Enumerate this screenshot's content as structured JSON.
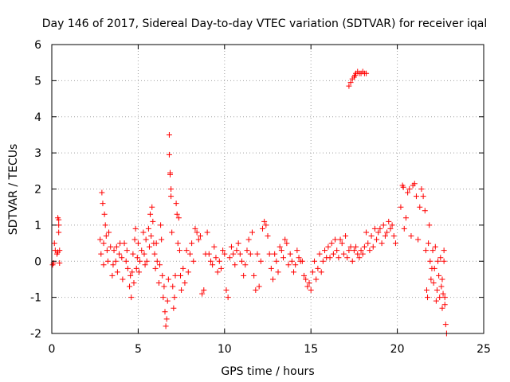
{
  "chart_data": {
    "type": "scatter",
    "title": "Day 146 of 2017, Sidereal Day-to-day VTEC variation (SDTVAR) for receiver iqal",
    "xlabel": "GPS time / hours",
    "ylabel": "SDTVAR / TECUs",
    "xlim": [
      0,
      25
    ],
    "ylim": [
      -2,
      6
    ],
    "xticks": [
      "0",
      "5",
      "10",
      "15",
      "20",
      "25"
    ],
    "yticks": [
      "-2",
      "-1",
      "0",
      "1",
      "2",
      "3",
      "4",
      "5",
      "6"
    ],
    "grid": true,
    "marker": "plus",
    "color": "#ff0000",
    "series": [
      {
        "name": "SDTVAR",
        "points": [
          [
            0.05,
            -0.1
          ],
          [
            0.1,
            -0.05
          ],
          [
            0.15,
            0.5
          ],
          [
            0.2,
            0.3
          ],
          [
            0.3,
            0.2
          ],
          [
            0.35,
            0.25
          ],
          [
            0.35,
            1.2
          ],
          [
            0.4,
            1.15
          ],
          [
            0.4,
            1.0
          ],
          [
            0.4,
            0.8
          ],
          [
            0.45,
            0.3
          ],
          [
            0.45,
            -0.05
          ],
          [
            2.8,
            0.6
          ],
          [
            2.85,
            0.2
          ],
          [
            2.9,
            1.9
          ],
          [
            2.95,
            1.6
          ],
          [
            3.0,
            0.5
          ],
          [
            3.0,
            -0.1
          ],
          [
            3.05,
            1.3
          ],
          [
            3.1,
            1.0
          ],
          [
            3.15,
            0.7
          ],
          [
            3.2,
            0.3
          ],
          [
            3.25,
            0.0
          ],
          [
            3.3,
            0.8
          ],
          [
            3.4,
            0.4
          ],
          [
            3.5,
            -0.4
          ],
          [
            3.55,
            -0.1
          ],
          [
            3.6,
            0.3
          ],
          [
            3.7,
            0.0
          ],
          [
            3.75,
            0.4
          ],
          [
            3.8,
            -0.3
          ],
          [
            3.9,
            0.2
          ],
          [
            3.95,
            0.5
          ],
          [
            4.05,
            0.1
          ],
          [
            4.1,
            -0.5
          ],
          [
            4.2,
            0.5
          ],
          [
            4.3,
            0.0
          ],
          [
            4.35,
            0.3
          ],
          [
            4.4,
            -0.2
          ],
          [
            4.5,
            -0.7
          ],
          [
            4.55,
            -0.4
          ],
          [
            4.6,
            -1.0
          ],
          [
            4.65,
            -0.3
          ],
          [
            4.7,
            0.2
          ],
          [
            4.75,
            -0.6
          ],
          [
            4.8,
            0.6
          ],
          [
            4.85,
            0.9
          ],
          [
            4.9,
            -0.2
          ],
          [
            4.95,
            0.1
          ],
          [
            5.0,
            0.5
          ],
          [
            5.05,
            -0.3
          ],
          [
            5.1,
            0.0
          ],
          [
            5.2,
            0.3
          ],
          [
            5.3,
            0.8
          ],
          [
            5.35,
            0.2
          ],
          [
            5.4,
            -0.1
          ],
          [
            5.45,
            0.6
          ],
          [
            5.5,
            0.0
          ],
          [
            5.6,
            0.9
          ],
          [
            5.65,
            0.4
          ],
          [
            5.7,
            1.3
          ],
          [
            5.75,
            0.7
          ],
          [
            5.8,
            1.5
          ],
          [
            5.85,
            1.1
          ],
          [
            5.9,
            0.5
          ],
          [
            5.95,
            0.2
          ],
          [
            6.0,
            -0.2
          ],
          [
            6.05,
            0.5
          ],
          [
            6.1,
            0.0
          ],
          [
            6.2,
            -0.6
          ],
          [
            6.25,
            -0.1
          ],
          [
            6.3,
            1.0
          ],
          [
            6.35,
            0.6
          ],
          [
            6.4,
            -0.4
          ],
          [
            6.45,
            -1.0
          ],
          [
            6.5,
            -0.7
          ],
          [
            6.55,
            -1.4
          ],
          [
            6.6,
            -1.8
          ],
          [
            6.65,
            -1.6
          ],
          [
            6.7,
            -1.1
          ],
          [
            6.75,
            -0.5
          ],
          [
            6.8,
            3.5
          ],
          [
            6.8,
            2.95
          ],
          [
            6.85,
            2.45
          ],
          [
            6.85,
            2.4
          ],
          [
            6.9,
            2.0
          ],
          [
            6.9,
            1.8
          ],
          [
            6.95,
            0.8
          ],
          [
            7.0,
            -0.7
          ],
          [
            7.05,
            -1.3
          ],
          [
            7.1,
            -1.0
          ],
          [
            7.15,
            -0.4
          ],
          [
            7.2,
            1.6
          ],
          [
            7.25,
            1.3
          ],
          [
            7.3,
            0.5
          ],
          [
            7.35,
            1.2
          ],
          [
            7.4,
            0.3
          ],
          [
            7.45,
            -0.4
          ],
          [
            7.5,
            -0.8
          ],
          [
            7.6,
            -0.2
          ],
          [
            7.7,
            -0.6
          ],
          [
            7.8,
            0.3
          ],
          [
            7.9,
            -0.3
          ],
          [
            8.0,
            0.2
          ],
          [
            8.1,
            0.5
          ],
          [
            8.2,
            0.0
          ],
          [
            8.3,
            0.9
          ],
          [
            8.4,
            0.8
          ],
          [
            8.5,
            0.6
          ],
          [
            8.6,
            0.7
          ],
          [
            8.7,
            -0.9
          ],
          [
            8.8,
            -0.8
          ],
          [
            8.9,
            0.2
          ],
          [
            9.0,
            0.8
          ],
          [
            9.1,
            0.2
          ],
          [
            9.2,
            0.0
          ],
          [
            9.3,
            -0.1
          ],
          [
            9.4,
            0.4
          ],
          [
            9.5,
            0.1
          ],
          [
            9.6,
            -0.3
          ],
          [
            9.7,
            0.0
          ],
          [
            9.8,
            -0.2
          ],
          [
            9.9,
            0.3
          ],
          [
            10.0,
            0.2
          ],
          [
            10.1,
            -0.8
          ],
          [
            10.2,
            -1.0
          ],
          [
            10.3,
            0.1
          ],
          [
            10.4,
            0.4
          ],
          [
            10.5,
            0.2
          ],
          [
            10.6,
            -0.1
          ],
          [
            10.7,
            0.3
          ],
          [
            10.8,
            0.5
          ],
          [
            10.9,
            0.2
          ],
          [
            11.0,
            0.0
          ],
          [
            11.1,
            -0.4
          ],
          [
            11.2,
            -0.1
          ],
          [
            11.3,
            0.3
          ],
          [
            11.4,
            0.6
          ],
          [
            11.5,
            0.2
          ],
          [
            11.6,
            0.8
          ],
          [
            11.7,
            -0.4
          ],
          [
            11.8,
            -0.8
          ],
          [
            11.9,
            0.2
          ],
          [
            12.0,
            -0.7
          ],
          [
            12.1,
            0.0
          ],
          [
            12.2,
            0.9
          ],
          [
            12.3,
            1.1
          ],
          [
            12.4,
            1.0
          ],
          [
            12.5,
            0.7
          ],
          [
            12.6,
            0.2
          ],
          [
            12.7,
            -0.2
          ],
          [
            12.8,
            -0.5
          ],
          [
            12.9,
            0.2
          ],
          [
            13.0,
            0.0
          ],
          [
            13.1,
            -0.3
          ],
          [
            13.2,
            0.4
          ],
          [
            13.3,
            0.3
          ],
          [
            13.4,
            0.1
          ],
          [
            13.5,
            0.6
          ],
          [
            13.6,
            0.5
          ],
          [
            13.7,
            -0.1
          ],
          [
            13.8,
            0.2
          ],
          [
            13.9,
            0.0
          ],
          [
            14.0,
            -0.3
          ],
          [
            14.1,
            -0.1
          ],
          [
            14.2,
            0.3
          ],
          [
            14.3,
            0.1
          ],
          [
            14.4,
            0.0
          ],
          [
            14.5,
            0.0
          ],
          [
            14.6,
            -0.4
          ],
          [
            14.7,
            -0.5
          ],
          [
            14.8,
            -0.7
          ],
          [
            14.9,
            -0.6
          ],
          [
            15.0,
            -0.8
          ],
          [
            15.1,
            -0.3
          ],
          [
            15.2,
            0.0
          ],
          [
            15.3,
            -0.5
          ],
          [
            15.4,
            -0.2
          ],
          [
            15.5,
            0.2
          ],
          [
            15.6,
            -0.3
          ],
          [
            15.7,
            0.0
          ],
          [
            15.8,
            0.3
          ],
          [
            15.9,
            0.1
          ],
          [
            16.0,
            0.4
          ],
          [
            16.1,
            0.1
          ],
          [
            16.2,
            0.5
          ],
          [
            16.3,
            0.2
          ],
          [
            16.4,
            0.6
          ],
          [
            16.5,
            0.3
          ],
          [
            16.6,
            0.1
          ],
          [
            16.7,
            0.6
          ],
          [
            16.8,
            0.5
          ],
          [
            16.9,
            0.2
          ],
          [
            17.0,
            0.7
          ],
          [
            17.1,
            0.1
          ],
          [
            17.2,
            0.3
          ],
          [
            17.3,
            0.4
          ],
          [
            17.4,
            0.0
          ],
          [
            17.5,
            0.3
          ],
          [
            17.6,
            0.4
          ],
          [
            17.7,
            0.2
          ],
          [
            17.8,
            0.1
          ],
          [
            17.9,
            0.3
          ],
          [
            18.0,
            0.2
          ],
          [
            18.1,
            0.4
          ],
          [
            18.2,
            0.8
          ],
          [
            18.3,
            0.5
          ],
          [
            18.4,
            0.3
          ],
          [
            18.5,
            0.7
          ],
          [
            18.6,
            0.4
          ],
          [
            18.7,
            0.9
          ],
          [
            18.8,
            0.6
          ],
          [
            18.9,
            0.8
          ],
          [
            19.0,
            0.9
          ],
          [
            19.1,
            0.5
          ],
          [
            19.2,
            1.0
          ],
          [
            19.3,
            0.7
          ],
          [
            19.4,
            0.8
          ],
          [
            19.5,
            1.1
          ],
          [
            19.6,
            0.9
          ],
          [
            19.7,
            1.0
          ],
          [
            19.8,
            0.7
          ],
          [
            19.9,
            0.5
          ],
          [
            17.2,
            4.85
          ],
          [
            17.3,
            4.95
          ],
          [
            17.4,
            5.05
          ],
          [
            17.5,
            5.1
          ],
          [
            17.55,
            5.15
          ],
          [
            17.6,
            5.2
          ],
          [
            17.7,
            5.25
          ],
          [
            17.8,
            5.2
          ],
          [
            17.9,
            5.2
          ],
          [
            18.0,
            5.25
          ],
          [
            18.1,
            5.2
          ],
          [
            18.2,
            5.2
          ],
          [
            20.2,
            1.5
          ],
          [
            20.3,
            2.1
          ],
          [
            20.35,
            2.05
          ],
          [
            20.4,
            0.9
          ],
          [
            20.5,
            1.2
          ],
          [
            20.6,
            1.9
          ],
          [
            20.7,
            2.0
          ],
          [
            20.8,
            0.7
          ],
          [
            20.9,
            2.1
          ],
          [
            21.0,
            2.15
          ],
          [
            21.1,
            1.8
          ],
          [
            21.2,
            0.6
          ],
          [
            21.3,
            1.5
          ],
          [
            21.4,
            2.0
          ],
          [
            21.5,
            1.8
          ],
          [
            21.6,
            1.4
          ],
          [
            21.65,
            0.3
          ],
          [
            21.7,
            -0.8
          ],
          [
            21.75,
            -1.0
          ],
          [
            21.8,
            0.5
          ],
          [
            21.85,
            1.0
          ],
          [
            21.9,
            0.0
          ],
          [
            21.95,
            -0.5
          ],
          [
            22.0,
            -0.2
          ],
          [
            22.05,
            0.3
          ],
          [
            22.1,
            -0.6
          ],
          [
            22.15,
            -0.2
          ],
          [
            22.2,
            0.4
          ],
          [
            22.25,
            -1.1
          ],
          [
            22.3,
            -0.8
          ],
          [
            22.35,
            0.0
          ],
          [
            22.4,
            -0.4
          ],
          [
            22.45,
            -1.0
          ],
          [
            22.5,
            0.1
          ],
          [
            22.55,
            -0.7
          ],
          [
            22.6,
            -1.3
          ],
          [
            22.65,
            -0.9
          ],
          [
            22.7,
            0.3
          ],
          [
            22.75,
            -1.2
          ],
          [
            22.8,
            -1.75
          ],
          [
            22.85,
            -2.0
          ],
          [
            22.75,
            -1.0
          ],
          [
            22.7,
            0.0
          ],
          [
            22.6,
            -0.5
          ]
        ]
      }
    ]
  }
}
